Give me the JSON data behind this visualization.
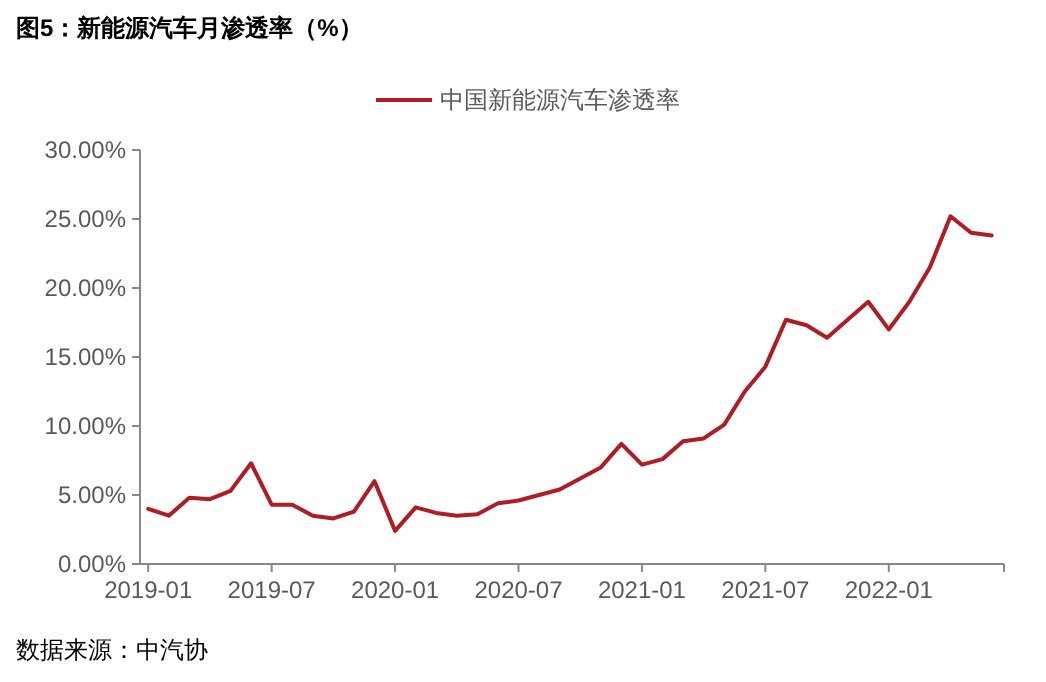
{
  "chart_data": {
    "type": "line",
    "title": "图5：新能源汽车月渗透率（%）",
    "categories": [
      "2019-01",
      null,
      null,
      null,
      null,
      null,
      "2019-07",
      null,
      null,
      null,
      null,
      null,
      "2020-01",
      null,
      null,
      null,
      null,
      null,
      "2020-07",
      null,
      null,
      null,
      null,
      null,
      "2021-01",
      null,
      null,
      null,
      null,
      null,
      "2021-07",
      null,
      null,
      null,
      null,
      null,
      "2022-01",
      null,
      null,
      null,
      null,
      null
    ],
    "series": [
      {
        "name": "中国新能源汽车渗透率",
        "color": "#b01c24",
        "values": [
          4.0,
          3.5,
          4.8,
          4.7,
          5.3,
          7.3,
          4.3,
          4.3,
          3.5,
          3.3,
          3.8,
          6.0,
          2.4,
          4.1,
          3.7,
          3.5,
          3.6,
          4.4,
          4.6,
          5.0,
          5.4,
          6.2,
          7.0,
          8.7,
          7.2,
          7.6,
          8.9,
          9.1,
          10.1,
          12.5,
          14.3,
          17.7,
          17.3,
          16.4,
          17.7,
          19.0,
          17.0,
          19.0,
          21.5,
          25.2,
          24.0,
          23.8
        ]
      }
    ],
    "ylim": [
      0,
      30
    ],
    "yticks": [
      {
        "value": 0,
        "label": "0.00%"
      },
      {
        "value": 5,
        "label": "5.00%"
      },
      {
        "value": 10,
        "label": "10.00%"
      },
      {
        "value": 15,
        "label": "15.00%"
      },
      {
        "value": 20,
        "label": "20.00%"
      },
      {
        "value": 25,
        "label": "25.00%"
      },
      {
        "value": 30,
        "label": "30.00%"
      }
    ],
    "legend": "top",
    "grid": false,
    "annotations": [
      "数据来源：中汽协"
    ]
  }
}
